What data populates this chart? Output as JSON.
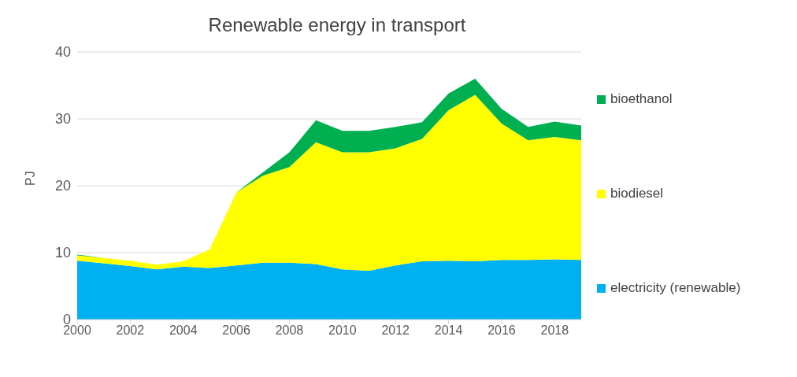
{
  "chart_data": {
    "type": "area",
    "title": "Renewable energy in transport",
    "ylabel": "PJ",
    "stacked": true,
    "x": [
      2000,
      2001,
      2002,
      2003,
      2004,
      2005,
      2006,
      2007,
      2008,
      2009,
      2010,
      2011,
      2012,
      2013,
      2014,
      2015,
      2016,
      2017,
      2018,
      2019
    ],
    "series": [
      {
        "name": "electricity (renewable)",
        "color": "#00b0f0",
        "values": [
          8.8,
          8.4,
          8.0,
          7.5,
          7.9,
          7.7,
          8.1,
          8.5,
          8.5,
          8.3,
          7.5,
          7.3,
          8.1,
          8.7,
          8.8,
          8.7,
          8.9,
          8.9,
          9.0,
          8.9
        ]
      },
      {
        "name": "biodiesel",
        "color": "#ffff00",
        "values": [
          0.8,
          0.8,
          0.8,
          0.7,
          0.8,
          2.8,
          10.9,
          13.0,
          14.3,
          18.2,
          17.5,
          17.7,
          17.5,
          18.3,
          22.5,
          24.9,
          20.4,
          17.9,
          18.3,
          17.9
        ]
      },
      {
        "name": "bioethanol",
        "color": "#00b050",
        "values": [
          0.1,
          0,
          0,
          0,
          0,
          0,
          0,
          0.5,
          2.2,
          3.3,
          3.2,
          3.2,
          3.2,
          2.5,
          2.5,
          2.4,
          2.2,
          2.0,
          2.3,
          2.2
        ]
      }
    ],
    "xlim": [
      2000,
      2019
    ],
    "xticks": [
      2000,
      2002,
      2004,
      2006,
      2008,
      2010,
      2012,
      2014,
      2016,
      2018
    ],
    "ylim": [
      0,
      40
    ],
    "yticks": [
      0,
      10,
      20,
      30,
      40
    ],
    "grid": "y",
    "legend": "right"
  }
}
